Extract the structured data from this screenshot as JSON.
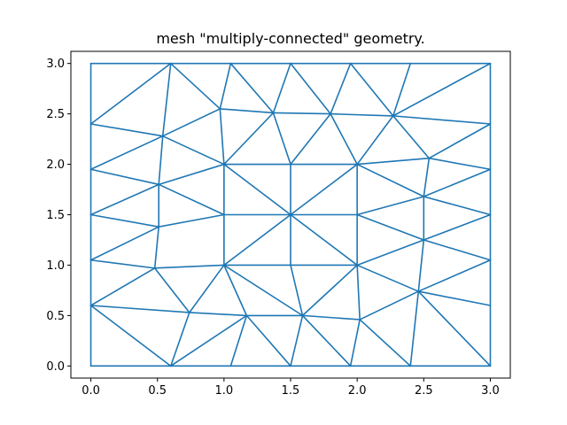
{
  "chart_data": {
    "type": "line",
    "title": "mesh \"multiply-connected\" geometry.",
    "xlabel": "",
    "ylabel": "",
    "xlim": [
      -0.15,
      3.15
    ],
    "ylim": [
      -0.12,
      3.12
    ],
    "grid": false,
    "xticks": [
      0.0,
      0.5,
      1.0,
      1.5,
      2.0,
      2.5,
      3.0
    ],
    "yticks": [
      0.0,
      0.5,
      1.0,
      1.5,
      2.0,
      2.5,
      3.0
    ],
    "xtick_labels": [
      "0.0",
      "0.5",
      "1.0",
      "1.5",
      "2.0",
      "2.5",
      "3.0"
    ],
    "ytick_labels": [
      "0.0",
      "0.5",
      "1.0",
      "1.5",
      "2.0",
      "2.5",
      "3.0"
    ],
    "line_color": "#1f77b4",
    "nodes": [
      [
        0,
        0
      ],
      [
        0.6,
        0
      ],
      [
        1.05,
        0
      ],
      [
        1.5,
        0
      ],
      [
        1.95,
        0
      ],
      [
        2.4,
        0
      ],
      [
        3,
        0
      ],
      [
        0,
        0.6
      ],
      [
        0,
        1.05
      ],
      [
        0,
        1.5
      ],
      [
        0,
        1.95
      ],
      [
        0,
        2.4
      ],
      [
        0,
        3
      ],
      [
        0.6,
        3
      ],
      [
        1.05,
        3
      ],
      [
        1.5,
        3
      ],
      [
        1.95,
        3
      ],
      [
        2.4,
        3
      ],
      [
        3,
        3
      ],
      [
        3,
        2.4
      ],
      [
        3,
        1.95
      ],
      [
        3,
        1.5
      ],
      [
        3,
        1.05
      ],
      [
        3,
        0.6
      ],
      [
        1,
        1
      ],
      [
        1.5,
        1
      ],
      [
        2,
        1
      ],
      [
        2,
        1.5
      ],
      [
        2,
        2
      ],
      [
        1.5,
        2
      ],
      [
        1,
        2
      ],
      [
        1,
        1.5
      ],
      [
        1.5,
        1.5
      ],
      [
        0.74,
        0.53
      ],
      [
        1.17,
        0.5
      ],
      [
        1.59,
        0.5
      ],
      [
        2.02,
        0.46
      ],
      [
        0.48,
        0.97
      ],
      [
        0.51,
        1.38
      ],
      [
        0.51,
        1.8
      ],
      [
        0.54,
        2.28
      ],
      [
        0.97,
        2.55
      ],
      [
        1.37,
        2.51
      ],
      [
        1.8,
        2.5
      ],
      [
        2.27,
        2.48
      ],
      [
        2.54,
        2.06
      ],
      [
        2.5,
        1.68
      ],
      [
        2.5,
        1.25
      ],
      [
        2.46,
        0.74
      ]
    ],
    "edges": [
      [
        0,
        1
      ],
      [
        1,
        2
      ],
      [
        2,
        3
      ],
      [
        3,
        4
      ],
      [
        4,
        5
      ],
      [
        5,
        6
      ],
      [
        0,
        7
      ],
      [
        7,
        8
      ],
      [
        8,
        9
      ],
      [
        9,
        10
      ],
      [
        10,
        11
      ],
      [
        11,
        12
      ],
      [
        12,
        13
      ],
      [
        13,
        14
      ],
      [
        14,
        15
      ],
      [
        15,
        16
      ],
      [
        16,
        17
      ],
      [
        17,
        18
      ],
      [
        18,
        19
      ],
      [
        19,
        20
      ],
      [
        20,
        21
      ],
      [
        21,
        22
      ],
      [
        22,
        23
      ],
      [
        23,
        6
      ],
      [
        24,
        25
      ],
      [
        25,
        26
      ],
      [
        26,
        27
      ],
      [
        27,
        28
      ],
      [
        28,
        29
      ],
      [
        29,
        30
      ],
      [
        30,
        31
      ],
      [
        31,
        24
      ],
      [
        24,
        32
      ],
      [
        25,
        32
      ],
      [
        26,
        32
      ],
      [
        27,
        32
      ],
      [
        28,
        32
      ],
      [
        29,
        32
      ],
      [
        30,
        32
      ],
      [
        31,
        32
      ],
      [
        7,
        1
      ],
      [
        7,
        33
      ],
      [
        33,
        1
      ],
      [
        1,
        34
      ],
      [
        33,
        34
      ],
      [
        2,
        34
      ],
      [
        34,
        3
      ],
      [
        3,
        35
      ],
      [
        34,
        35
      ],
      [
        35,
        4
      ],
      [
        4,
        36
      ],
      [
        35,
        36
      ],
      [
        36,
        5
      ],
      [
        5,
        48
      ],
      [
        36,
        48
      ],
      [
        48,
        6
      ],
      [
        48,
        23
      ],
      [
        7,
        37
      ],
      [
        37,
        8
      ],
      [
        33,
        37
      ],
      [
        37,
        24
      ],
      [
        33,
        24
      ],
      [
        24,
        34
      ],
      [
        24,
        35
      ],
      [
        25,
        35
      ],
      [
        26,
        35
      ],
      [
        26,
        36
      ],
      [
        26,
        48
      ],
      [
        8,
        38
      ],
      [
        38,
        9
      ],
      [
        37,
        38
      ],
      [
        38,
        31
      ],
      [
        9,
        39
      ],
      [
        38,
        39
      ],
      [
        39,
        31
      ],
      [
        39,
        10
      ],
      [
        39,
        30
      ],
      [
        10,
        40
      ],
      [
        39,
        40
      ],
      [
        40,
        30
      ],
      [
        40,
        11
      ],
      [
        11,
        13
      ],
      [
        40,
        13
      ],
      [
        40,
        41
      ],
      [
        41,
        13
      ],
      [
        41,
        14
      ],
      [
        41,
        30
      ],
      [
        41,
        42
      ],
      [
        42,
        30
      ],
      [
        42,
        29
      ],
      [
        42,
        14
      ],
      [
        42,
        15
      ],
      [
        42,
        43
      ],
      [
        43,
        15
      ],
      [
        43,
        29
      ],
      [
        43,
        28
      ],
      [
        43,
        16
      ],
      [
        43,
        44
      ],
      [
        44,
        16
      ],
      [
        44,
        17
      ],
      [
        44,
        28
      ],
      [
        44,
        18
      ],
      [
        44,
        19
      ],
      [
        44,
        45
      ],
      [
        45,
        19
      ],
      [
        45,
        28
      ],
      [
        45,
        20
      ],
      [
        45,
        46
      ],
      [
        46,
        20
      ],
      [
        46,
        28
      ],
      [
        46,
        27
      ],
      [
        46,
        21
      ],
      [
        46,
        47
      ],
      [
        47,
        21
      ],
      [
        47,
        27
      ],
      [
        47,
        26
      ],
      [
        47,
        22
      ],
      [
        47,
        48
      ],
      [
        48,
        22
      ]
    ]
  }
}
